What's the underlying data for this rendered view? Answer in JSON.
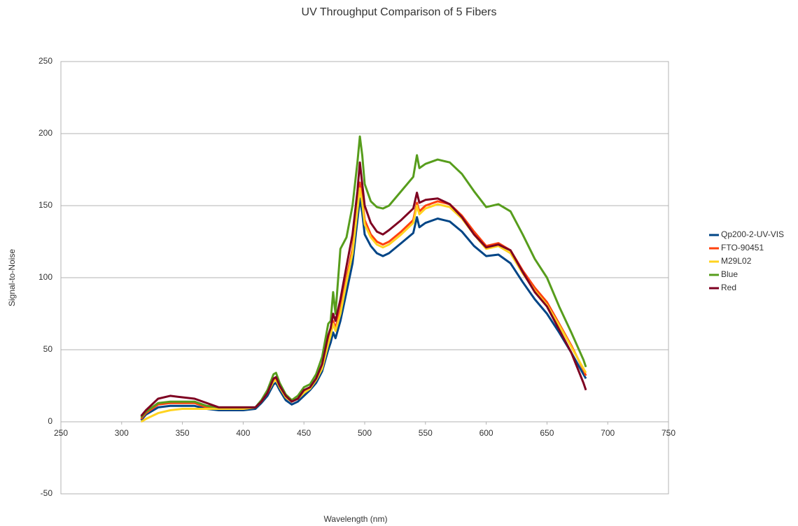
{
  "chart_data": {
    "type": "line",
    "title": "UV Throughput Comparison of 5 Fibers",
    "x_label": "Wavelength (nm)",
    "y_label": "Signal-to-Noise",
    "x": [
      316,
      320,
      330,
      340,
      350,
      360,
      370,
      380,
      390,
      400,
      410,
      415,
      420,
      425,
      427,
      430,
      435,
      440,
      445,
      450,
      455,
      460,
      465,
      470,
      472,
      474,
      476,
      480,
      485,
      490,
      494,
      496,
      498,
      500,
      505,
      510,
      515,
      520,
      530,
      540,
      543,
      545,
      550,
      560,
      570,
      580,
      590,
      600,
      610,
      620,
      630,
      640,
      650,
      660,
      670,
      680,
      682
    ],
    "series": [
      {
        "name": "Qp200-2-UV-VIS",
        "color": "#004586",
        "values": [
          1,
          5,
          10,
          11,
          11,
          11,
          9,
          8,
          8,
          8,
          9,
          13,
          18,
          26,
          27,
          22,
          15,
          12,
          14,
          18,
          22,
          27,
          35,
          50,
          55,
          62,
          58,
          70,
          90,
          110,
          140,
          155,
          145,
          130,
          122,
          117,
          115,
          117,
          124,
          131,
          142,
          135,
          138,
          141,
          139,
          132,
          122,
          115,
          116,
          110,
          97,
          85,
          75,
          62,
          48,
          33,
          30
        ]
      },
      {
        "name": "FTO-90451",
        "color": "#ff420e",
        "values": [
          2,
          6,
          12,
          13,
          13,
          13,
          10,
          9,
          9,
          9,
          10,
          14,
          20,
          29,
          30,
          24,
          17,
          14,
          16,
          21,
          24,
          30,
          39,
          56,
          62,
          70,
          65,
          78,
          100,
          120,
          150,
          166,
          155,
          140,
          130,
          125,
          123,
          125,
          132,
          140,
          152,
          146,
          150,
          153,
          151,
          143,
          132,
          122,
          124,
          119,
          105,
          93,
          83,
          68,
          53,
          36,
          32
        ]
      },
      {
        "name": "M29L02",
        "color": "#ffd320",
        "values": [
          0,
          2,
          6,
          8,
          9,
          9,
          9,
          9,
          9,
          9,
          10,
          14,
          20,
          28,
          29,
          24,
          17,
          14,
          16,
          20,
          23,
          29,
          37,
          54,
          60,
          68,
          63,
          75,
          97,
          117,
          147,
          162,
          152,
          137,
          128,
          123,
          121,
          123,
          130,
          138,
          150,
          144,
          148,
          151,
          149,
          141,
          130,
          120,
          122,
          117,
          103,
          91,
          81,
          67,
          52,
          37,
          34
        ]
      },
      {
        "name": "Blue",
        "color": "#579d1c",
        "values": [
          3,
          7,
          13,
          14,
          14,
          14,
          11,
          10,
          10,
          10,
          10,
          15,
          22,
          33,
          34,
          27,
          19,
          15,
          18,
          24,
          26,
          33,
          45,
          68,
          70,
          90,
          75,
          120,
          128,
          150,
          180,
          198,
          185,
          165,
          153,
          149,
          148,
          150,
          160,
          170,
          185,
          176,
          179,
          182,
          180,
          172,
          160,
          149,
          151,
          146,
          130,
          113,
          100,
          80,
          62,
          43,
          38
        ]
      },
      {
        "name": "Red",
        "color": "#7e0021",
        "values": [
          4,
          8,
          16,
          18,
          17,
          16,
          13,
          10,
          10,
          10,
          10,
          14,
          20,
          30,
          31,
          25,
          18,
          14,
          16,
          22,
          24,
          30,
          40,
          60,
          65,
          75,
          70,
          85,
          108,
          130,
          160,
          180,
          165,
          150,
          138,
          132,
          130,
          133,
          140,
          148,
          159,
          152,
          154,
          155,
          151,
          142,
          130,
          121,
          123,
          119,
          104,
          90,
          80,
          64,
          48,
          27,
          22
        ]
      }
    ],
    "xlim": [
      250,
      750
    ],
    "xticks": [
      250,
      300,
      350,
      400,
      450,
      500,
      550,
      600,
      650,
      700,
      750
    ],
    "ylim": [
      -50,
      250
    ],
    "yticks": [
      -50,
      0,
      50,
      100,
      150,
      200,
      250
    ],
    "grid": true,
    "legend": "right"
  }
}
